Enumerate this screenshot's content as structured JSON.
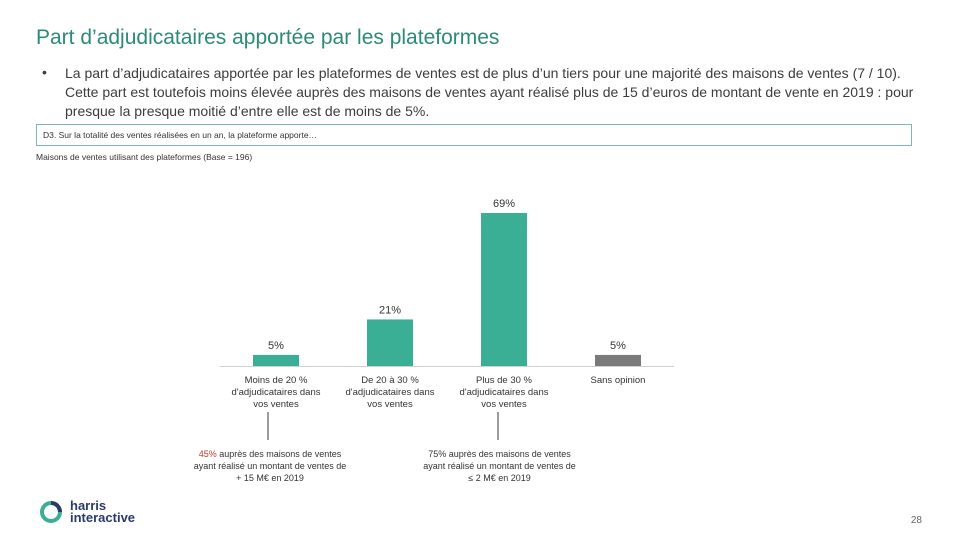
{
  "header": {
    "title": "Part d’adjudicataires apportée par les plateformes"
  },
  "intro": {
    "bullet": "•",
    "text": "La part d’adjudicataires apportée par les plateformes de ventes est de plus d’un tiers pour une majorité des maisons de ventes (7 / 10). Cette part est toutefois moins élevée auprès des maisons de ventes ayant réalisé plus de 15 d’euros de montant de vente en 2019 : pour presque la presque moitié d’entre elle est de moins de 5%."
  },
  "question": "D3. Sur la totalité des ventes réalisées en un an, la plateforme apporte…",
  "base": "Maisons de ventes utilisant des plateformes (Base = 196)",
  "chart_data": {
    "type": "bar",
    "categories": [
      "Moins de 20 % d'adjudicataires dans vos ventes",
      "De 20 à 30 % d'adjudicataires dans vos ventes",
      "Plus de 30 % d'adjudicataires dans vos ventes",
      "Sans opinion"
    ],
    "category_lines": [
      [
        "Moins de 20 %",
        "d'adjudicataires dans",
        "vos ventes"
      ],
      [
        "De 20 à 30 %",
        "d'adjudicataires dans",
        "vos ventes"
      ],
      [
        "Plus de 30 %",
        "d'adjudicataires dans",
        "vos ventes"
      ],
      [
        "Sans opinion"
      ]
    ],
    "values": [
      5,
      21,
      69,
      5
    ],
    "value_labels": [
      "5%",
      "21%",
      "69%",
      "5%"
    ],
    "colors": [
      "#3aaf96",
      "#3aaf96",
      "#3aaf96",
      "#7a7a7a"
    ],
    "ylim": [
      0,
      69
    ],
    "title": "",
    "xlabel": "",
    "ylabel": ""
  },
  "notes": {
    "left": {
      "highlight": "45%",
      "rest": " auprès des maisons de ventes ayant réalisé un montant de ventes de + 15 M€ en 2019"
    },
    "right": {
      "text": "75% auprès des maisons de ventes ayant réalisé un montant de ventes de ≤ 2 M€ en 2019"
    }
  },
  "logo": {
    "line1": "harris",
    "line2": "interactive"
  },
  "page_number": "28"
}
